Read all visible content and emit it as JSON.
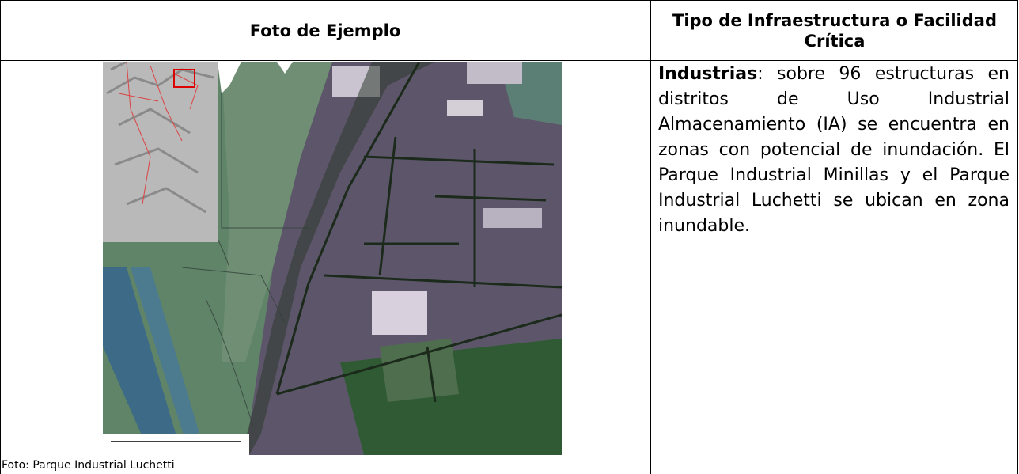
{
  "table": {
    "headers": [
      "Foto de Ejemplo",
      "Tipo de Infraestructura o Facilidad Crítica"
    ],
    "caption": "Foto: Parque Industrial Luchetti",
    "description": {
      "term": "Industrias",
      "text": ": sobre 96 estructuras en distritos de Uso Industrial Almacenamiento (IA) se encuentra en zonas con potencial de inundación. El Parque Industrial Minillas y el Parque Industrial Luchetti se ubican en zona inundable."
    }
  }
}
